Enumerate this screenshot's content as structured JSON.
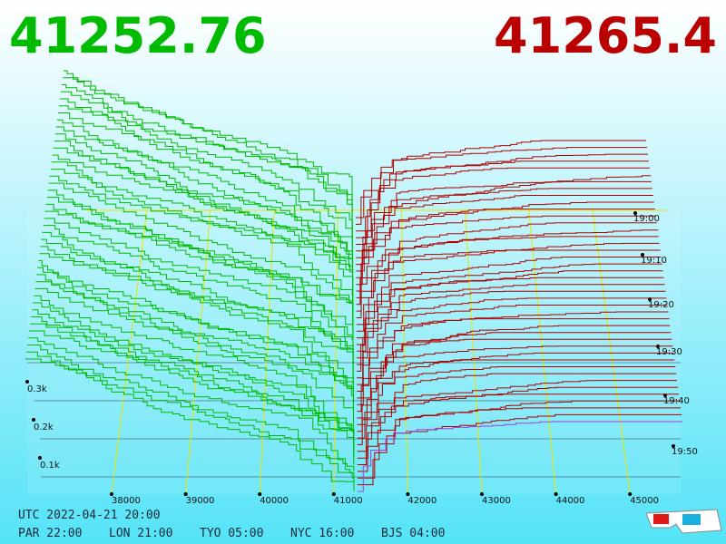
{
  "bid": "41252.76",
  "ask": "41265.4",
  "price_axis": [
    "38000",
    "39000",
    "40000",
    "41000",
    "42000",
    "43000",
    "44000",
    "45000"
  ],
  "time_axis": [
    "19:00",
    "19:10",
    "19:20",
    "19:30",
    "19:40",
    "19:50"
  ],
  "depth_axis": [
    "0.3k",
    "0.2k",
    "0.1k"
  ],
  "utc": "UTC 2022-04-21 20:00",
  "cities": [
    "PAR 22:00",
    "LON 21:00",
    "TYO 05:00",
    "NYC 16:00",
    "BJS 04:00"
  ]
}
